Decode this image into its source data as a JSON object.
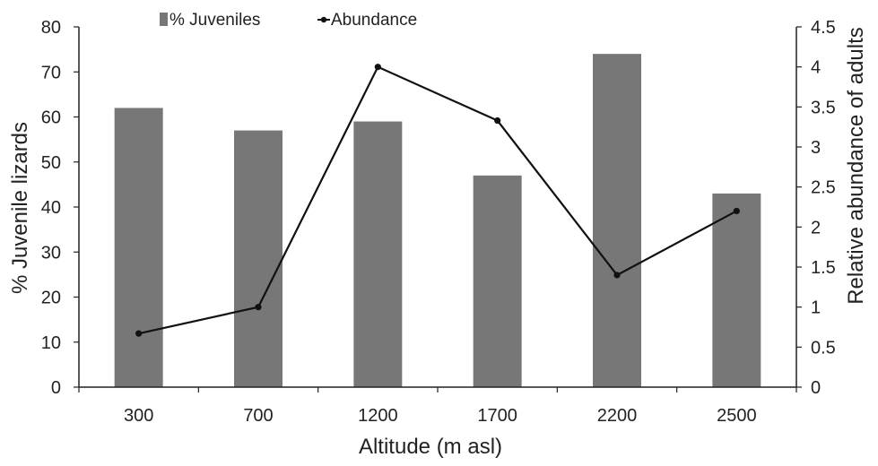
{
  "chart_data": {
    "type": "bar",
    "categories": [
      "300",
      "700",
      "1200",
      "1700",
      "2200",
      "2500"
    ],
    "series": [
      {
        "name": "% Juveniles",
        "type": "bar",
        "axis": "left",
        "values": [
          62,
          57,
          59,
          47,
          74,
          43
        ],
        "color": "#777777"
      },
      {
        "name": "Abundance",
        "type": "line",
        "axis": "right",
        "values": [
          0.67,
          1.0,
          4.0,
          3.33,
          1.4,
          2.2
        ],
        "color": "#111111"
      }
    ],
    "xlabel": "Altitude (m asl)",
    "ylabel": "% Juvenile lizards",
    "y2label": "Relative abundance of adults",
    "ylim": [
      0,
      80
    ],
    "y2lim": [
      0,
      4.5
    ],
    "yticks": [
      "0",
      "10",
      "20",
      "30",
      "40",
      "50",
      "60",
      "70",
      "80"
    ],
    "y2ticks": [
      "0",
      "0.5",
      "1",
      "1.5",
      "2",
      "2.5",
      "3",
      "3.5",
      "4",
      "4.5"
    ],
    "grid": false,
    "legend_position": "top"
  }
}
